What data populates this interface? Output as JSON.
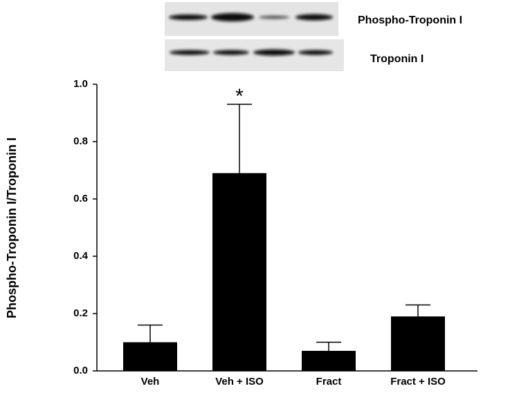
{
  "blots": {
    "labels": [
      "Phospho-Troponin I",
      "Troponin I"
    ]
  },
  "chart_data": {
    "type": "bar",
    "ylabel": "Phospho-Troponin I/Troponin I",
    "categories": [
      "Veh",
      "Veh + ISO",
      "Fract",
      "Fract + ISO"
    ],
    "values": [
      0.1,
      0.69,
      0.07,
      0.19
    ],
    "errors": [
      0.06,
      0.24,
      0.03,
      0.04
    ],
    "color": "#000000",
    "annotation": "*",
    "ylim": [
      0,
      1.0
    ],
    "yticks": [
      {
        "value": 0,
        "label": "0.0"
      },
      0.2,
      0.4,
      0.6,
      0.8,
      {
        "value": 1.0,
        "label": "1.0"
      }
    ],
    "grid": false
  }
}
